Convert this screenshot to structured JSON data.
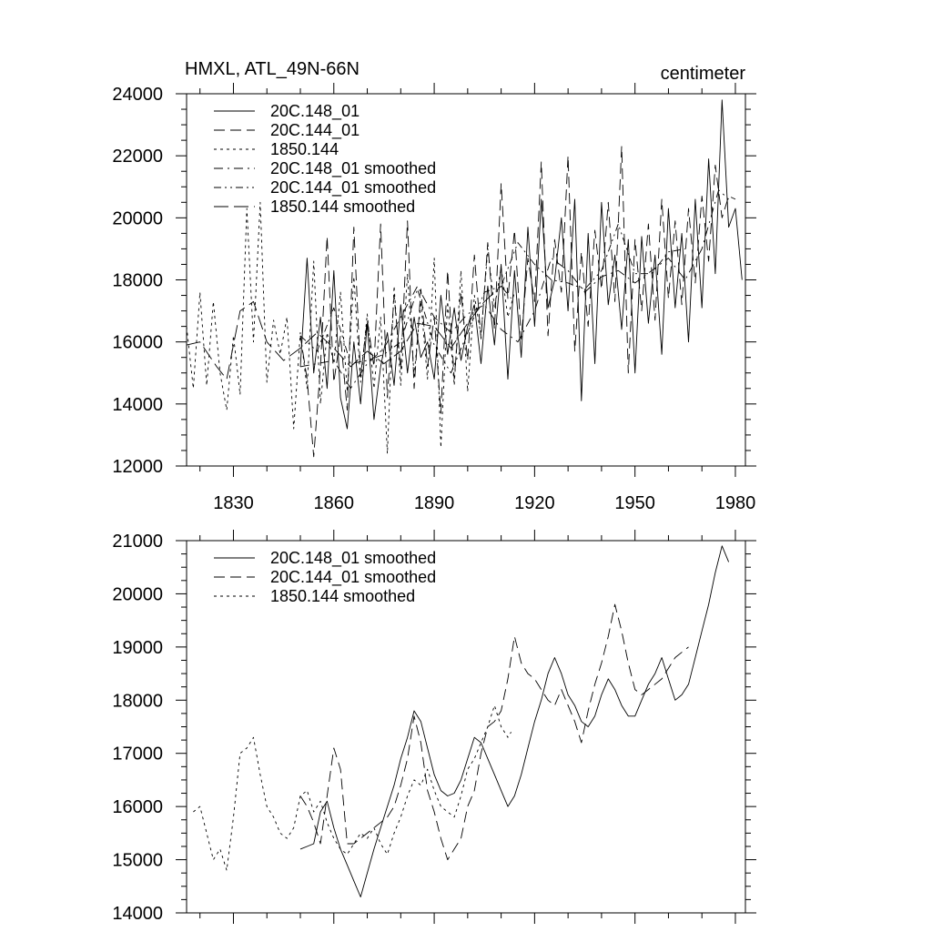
{
  "chart_data": [
    {
      "type": "line",
      "title": "HMXL, ATL_49N-66N",
      "units": "centimeter",
      "xlabel": "",
      "ylabel": "",
      "xlim": [
        1816,
        1983
      ],
      "ylim": [
        12000,
        24000
      ],
      "xticks": [
        1830,
        1860,
        1890,
        1920,
        1950,
        1980
      ],
      "yticks": [
        12000,
        14000,
        16000,
        18000,
        20000,
        22000,
        24000
      ],
      "legend_position": "top-left",
      "series": [
        {
          "name": "20C.148_01",
          "style": "solid",
          "x": [
            1850,
            1852,
            1854,
            1856,
            1858,
            1860,
            1862,
            1864,
            1866,
            1868,
            1870,
            1872,
            1874,
            1876,
            1878,
            1880,
            1882,
            1884,
            1886,
            1888,
            1890,
            1892,
            1894,
            1896,
            1898,
            1900,
            1902,
            1904,
            1906,
            1908,
            1910,
            1912,
            1914,
            1916,
            1918,
            1920,
            1922,
            1924,
            1926,
            1928,
            1930,
            1932,
            1934,
            1936,
            1938,
            1940,
            1942,
            1944,
            1946,
            1948,
            1950,
            1952,
            1954,
            1956,
            1958,
            1960,
            1962,
            1964,
            1966,
            1968,
            1970,
            1972,
            1974,
            1976,
            1978,
            1980,
            1982
          ],
          "values": [
            15200,
            18700,
            15000,
            16800,
            14500,
            18300,
            14200,
            13200,
            16000,
            14000,
            16600,
            13500,
            15200,
            16300,
            14600,
            17200,
            15000,
            16800,
            15500,
            16000,
            14800,
            17500,
            15600,
            17100,
            15400,
            16500,
            17200,
            15300,
            17800,
            15900,
            18500,
            14800,
            18300,
            15500,
            19700,
            16500,
            20600,
            17100,
            18000,
            20000,
            17000,
            20600,
            14100,
            19500,
            15300,
            20500,
            17200,
            18800,
            16400,
            19300,
            15000,
            19400,
            16600,
            18800,
            15600,
            20300,
            17100,
            19500,
            16000,
            20600,
            17100,
            21900,
            18200,
            23800,
            19700,
            20300,
            18000
          ]
        },
        {
          "name": "20C.144_01",
          "style": "dashed",
          "x": [
            1850,
            1852,
            1854,
            1856,
            1858,
            1860,
            1862,
            1864,
            1866,
            1868,
            1870,
            1872,
            1874,
            1876,
            1878,
            1880,
            1882,
            1884,
            1886,
            1888,
            1890,
            1892,
            1894,
            1896,
            1898,
            1900,
            1902,
            1904,
            1906,
            1908,
            1910,
            1912,
            1914,
            1916,
            1918,
            1920,
            1922,
            1924,
            1926,
            1928,
            1930,
            1932,
            1934,
            1936,
            1938,
            1940,
            1942,
            1944,
            1946,
            1948,
            1950,
            1952,
            1954,
            1956,
            1958,
            1960,
            1962,
            1964,
            1966,
            1968,
            1970,
            1972,
            1974,
            1976,
            1978,
            1980
          ],
          "values": [
            16200,
            14800,
            12300,
            15200,
            19400,
            14700,
            16200,
            13800,
            19700,
            14900,
            16700,
            15200,
            19800,
            14200,
            17500,
            15100,
            19900,
            14500,
            17700,
            15200,
            16800,
            13700,
            18300,
            14800,
            17600,
            15400,
            18800,
            16100,
            19200,
            16400,
            21100,
            17400,
            19600,
            16100,
            18700,
            17300,
            21800,
            16200,
            19300,
            17600,
            22000,
            15700,
            18900,
            16500,
            19600,
            17700,
            20500,
            17300,
            22300,
            15000,
            19300,
            17000,
            19800,
            16700,
            20600,
            17400,
            19900,
            17200,
            20300,
            17900,
            20700,
            18600,
            21700,
            20000,
            20700,
            20600
          ]
        },
        {
          "name": "1850.144",
          "style": "dotted",
          "x": [
            1816,
            1818,
            1820,
            1822,
            1824,
            1826,
            1828,
            1830,
            1832,
            1834,
            1836,
            1838,
            1840,
            1842,
            1844,
            1846,
            1848,
            1850,
            1852,
            1854,
            1856,
            1858,
            1860,
            1862,
            1864,
            1866,
            1868,
            1870,
            1872,
            1874,
            1876,
            1878,
            1880,
            1882,
            1884,
            1886,
            1888,
            1890,
            1892,
            1894,
            1896,
            1898,
            1900,
            1902,
            1904,
            1906,
            1908,
            1910,
            1912,
            1914
          ],
          "values": [
            16500,
            14500,
            17600,
            14600,
            17300,
            15000,
            13800,
            16200,
            14300,
            20300,
            16000,
            20500,
            14700,
            16700,
            15600,
            16800,
            13200,
            16300,
            14500,
            18600,
            14000,
            16300,
            15300,
            17600,
            14400,
            18100,
            14700,
            16900,
            14500,
            16800,
            12400,
            17800,
            14600,
            18200,
            14900,
            17300,
            14800,
            18700,
            12600,
            17300,
            14600,
            18300,
            14400,
            17500,
            16200,
            19000,
            17100,
            18400,
            16800,
            17600
          ]
        },
        {
          "name": "20C.148_01 smoothed",
          "style": "dash-dot",
          "x": [
            1850,
            1855,
            1860,
            1865,
            1870,
            1875,
            1880,
            1885,
            1890,
            1895,
            1900,
            1905,
            1910,
            1915,
            1920,
            1925,
            1930,
            1935,
            1940,
            1945,
            1950,
            1955,
            1960,
            1965,
            1970,
            1975,
            1978
          ],
          "values": [
            15200,
            15300,
            15400,
            14500,
            15300,
            15800,
            16800,
            17800,
            16800,
            16300,
            16900,
            17200,
            16400,
            16000,
            17000,
            18700,
            18300,
            17600,
            18100,
            18300,
            17900,
            18300,
            18700,
            18000,
            19000,
            20900,
            20600
          ]
        },
        {
          "name": "20C.144_01 smoothed",
          "style": "dash-dot-dot",
          "x": [
            1850,
            1855,
            1860,
            1865,
            1870,
            1875,
            1880,
            1885,
            1890,
            1895,
            1900,
            1905,
            1910,
            1915,
            1920,
            1925,
            1930,
            1935,
            1940,
            1945,
            1950,
            1955,
            1960,
            1965
          ],
          "values": [
            16200,
            15700,
            17100,
            15300,
            15400,
            15600,
            16000,
            17700,
            15900,
            15000,
            16300,
            17600,
            17800,
            19200,
            18500,
            18000,
            17900,
            17700,
            18300,
            19800,
            18200,
            18200,
            18900,
            19000
          ]
        },
        {
          "name": "1850.144 smoothed",
          "style": "long-dash",
          "x": [
            1816,
            1820,
            1825,
            1828,
            1832,
            1836,
            1840,
            1845,
            1850,
            1855,
            1860,
            1865,
            1870,
            1875,
            1880,
            1885,
            1890,
            1895,
            1900,
            1905,
            1910,
            1913
          ],
          "values": [
            15900,
            16000,
            15200,
            14800,
            17000,
            17300,
            16000,
            15400,
            15800,
            16300,
            15800,
            15200,
            15700,
            15300,
            15700,
            16600,
            16500,
            15800,
            16600,
            17300,
            17800,
            17400
          ]
        }
      ]
    },
    {
      "type": "line",
      "title": "",
      "xlabel": "",
      "ylabel": "",
      "xlim": [
        1816,
        1983
      ],
      "ylim": [
        14000,
        21000
      ],
      "xticks": [
        1830,
        1860,
        1890,
        1920,
        1950,
        1980
      ],
      "yticks": [
        14000,
        15000,
        16000,
        17000,
        18000,
        19000,
        20000,
        21000
      ],
      "legend_position": "top-left",
      "series": [
        {
          "name": "20C.148_01 smoothed",
          "style": "solid",
          "x": [
            1850,
            1852,
            1854,
            1856,
            1858,
            1860,
            1862,
            1864,
            1866,
            1868,
            1870,
            1872,
            1874,
            1876,
            1878,
            1880,
            1882,
            1884,
            1886,
            1888,
            1890,
            1892,
            1894,
            1896,
            1898,
            1900,
            1902,
            1904,
            1906,
            1908,
            1910,
            1912,
            1914,
            1916,
            1918,
            1920,
            1922,
            1924,
            1926,
            1928,
            1930,
            1932,
            1934,
            1936,
            1938,
            1940,
            1942,
            1944,
            1946,
            1948,
            1950,
            1952,
            1954,
            1956,
            1958,
            1960,
            1962,
            1964,
            1966,
            1968,
            1970,
            1972,
            1974,
            1976,
            1978
          ],
          "values": [
            15200,
            15250,
            15300,
            15900,
            16100,
            15600,
            15200,
            14900,
            14600,
            14300,
            14750,
            15200,
            15600,
            16000,
            16400,
            16900,
            17300,
            17800,
            17600,
            17100,
            16600,
            16300,
            16200,
            16250,
            16500,
            16900,
            17300,
            17200,
            16900,
            16600,
            16300,
            16000,
            16200,
            16600,
            17100,
            17600,
            18000,
            18500,
            18800,
            18500,
            18100,
            17900,
            17600,
            17500,
            17700,
            18100,
            18400,
            18200,
            17900,
            17700,
            17700,
            18000,
            18300,
            18500,
            18800,
            18400,
            18000,
            18100,
            18300,
            18800,
            19300,
            19800,
            20400,
            20900,
            20600
          ]
        },
        {
          "name": "20C.144_01 smoothed",
          "style": "dashed",
          "x": [
            1850,
            1852,
            1854,
            1856,
            1858,
            1860,
            1862,
            1864,
            1866,
            1868,
            1870,
            1872,
            1874,
            1876,
            1878,
            1880,
            1882,
            1884,
            1886,
            1888,
            1890,
            1892,
            1894,
            1896,
            1898,
            1900,
            1902,
            1904,
            1906,
            1908,
            1910,
            1912,
            1914,
            1916,
            1918,
            1920,
            1922,
            1924,
            1926,
            1928,
            1930,
            1932,
            1934,
            1936,
            1938,
            1940,
            1942,
            1944,
            1946,
            1948,
            1950,
            1952,
            1954,
            1956,
            1958,
            1960,
            1962,
            1964,
            1966
          ],
          "values": [
            16200,
            16000,
            15700,
            15300,
            16200,
            17100,
            16700,
            15300,
            15300,
            15400,
            15500,
            15600,
            15700,
            15800,
            16000,
            16400,
            16900,
            17700,
            17200,
            16300,
            15900,
            15400,
            15000,
            15200,
            15400,
            16000,
            16300,
            17000,
            17500,
            17600,
            17800,
            18400,
            19200,
            18700,
            18500,
            18400,
            18200,
            18000,
            17900,
            18200,
            17900,
            17600,
            17200,
            17800,
            18300,
            18700,
            19200,
            19800,
            19300,
            18700,
            18200,
            18100,
            18200,
            18300,
            18400,
            18600,
            18800,
            18900,
            19000
          ]
        },
        {
          "name": "1850.144 smoothed",
          "style": "dotted",
          "x": [
            1818,
            1820,
            1822,
            1824,
            1826,
            1828,
            1830,
            1832,
            1834,
            1836,
            1838,
            1840,
            1842,
            1844,
            1846,
            1848,
            1850,
            1852,
            1854,
            1856,
            1858,
            1860,
            1862,
            1864,
            1866,
            1868,
            1870,
            1872,
            1874,
            1876,
            1878,
            1880,
            1882,
            1884,
            1886,
            1888,
            1890,
            1892,
            1894,
            1896,
            1898,
            1900,
            1902,
            1904,
            1906,
            1908,
            1910,
            1912,
            1913
          ],
          "values": [
            15900,
            16000,
            15500,
            15000,
            15200,
            14800,
            15800,
            17000,
            17100,
            17300,
            16600,
            16000,
            15800,
            15500,
            15400,
            15600,
            16200,
            16300,
            15900,
            16100,
            15700,
            15400,
            15200,
            15100,
            15300,
            15500,
            15400,
            15600,
            15300,
            15100,
            15500,
            15800,
            16200,
            16500,
            16400,
            16700,
            16300,
            16000,
            15900,
            15800,
            16200,
            16700,
            16900,
            17200,
            17500,
            17900,
            17500,
            17300,
            17400
          ]
        }
      ]
    }
  ]
}
